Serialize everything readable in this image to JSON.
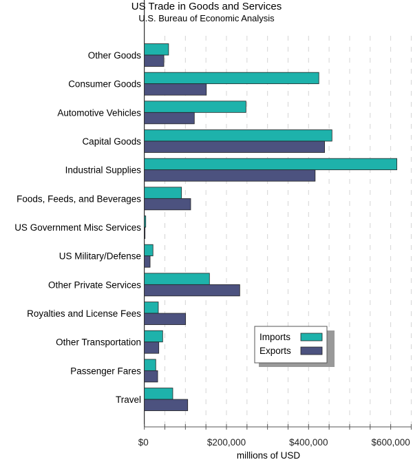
{
  "chart_data": {
    "type": "bar",
    "orientation": "horizontal",
    "title": "US Trade in Goods and Services",
    "subtitle": "U.S. Bureau of Economic Analysis",
    "xlabel": "millions of USD",
    "ylabel": "",
    "xlim": [
      0,
      650000
    ],
    "xticks": [
      0,
      200000,
      400000,
      600000
    ],
    "xtick_labels": [
      "$0",
      "$200,000",
      "$400,000",
      "$600,000"
    ],
    "grid": "vertical dashed every 50,000",
    "legend_position": "lower-right",
    "categories": [
      "Other Goods",
      "Consumer Goods",
      "Automotive Vehicles",
      "Capital Goods",
      "Industrial Supplies",
      "Foods, Feeds, and Beverages",
      "US Government Misc Services",
      "US Military/Defense",
      "Other Private Services",
      "Royalties and License Fees",
      "Other Transportation",
      "Passenger Fares",
      "Travel"
    ],
    "series": [
      {
        "name": "Imports",
        "color": "#1eb2ab",
        "values": [
          59000,
          425000,
          247500,
          457000,
          615000,
          90500,
          3400,
          21000,
          158600,
          34000,
          44600,
          27800,
          69200
        ]
      },
      {
        "name": "Exports",
        "color": "#4c527f",
        "values": [
          47500,
          151000,
          121700,
          439000,
          416000,
          112800,
          500,
          14000,
          232400,
          100500,
          35200,
          32400,
          105600
        ]
      }
    ]
  }
}
